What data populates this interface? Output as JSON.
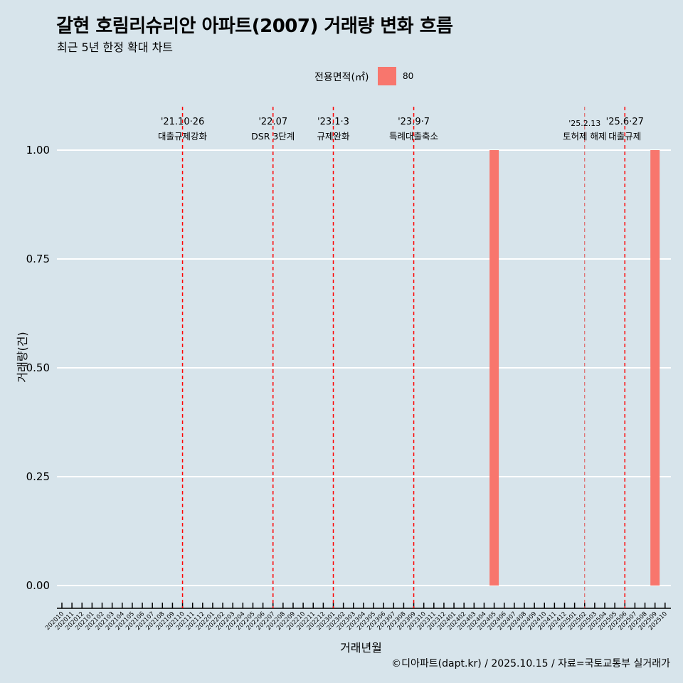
{
  "header": {
    "title": "갈현 호림리슈리안 아파트(2007) 거래량 변화 흐름",
    "subtitle": "최근 5년 한정 확대 차트"
  },
  "legend": {
    "title": "전용면적(㎡)",
    "label": "80",
    "color": "#f8766d"
  },
  "caption": "©디아파트(dapt.kr) / 2025.10.15 / 자료=국토교통부 실거래가",
  "chart_data": {
    "type": "bar",
    "title": "갈현 호림리슈리안 아파트(2007) 거래량 변화 흐름",
    "xlabel": "거래년월",
    "ylabel": "거래량(건)",
    "ylim": [
      0,
      1
    ],
    "yticks": [
      "0.00",
      "0.25",
      "0.50",
      "0.75",
      "1.00"
    ],
    "categories": [
      "202010",
      "202011",
      "202012",
      "202101",
      "202102",
      "202103",
      "202104",
      "202105",
      "202106",
      "202107",
      "202108",
      "202109",
      "202110",
      "202111",
      "202112",
      "202201",
      "202202",
      "202203",
      "202204",
      "202205",
      "202206",
      "202207",
      "202208",
      "202209",
      "202210",
      "202211",
      "202212",
      "202301",
      "202302",
      "202303",
      "202304",
      "202305",
      "202306",
      "202307",
      "202308",
      "202309",
      "202310",
      "202311",
      "202312",
      "202401",
      "202402",
      "202403",
      "202404",
      "202405",
      "202406",
      "202407",
      "202408",
      "202409",
      "202410",
      "202411",
      "202412",
      "202501",
      "202502",
      "202503",
      "202504",
      "202505",
      "202506",
      "202507",
      "202508",
      "202509",
      "202510"
    ],
    "series": [
      {
        "name": "80",
        "values": [
          {
            "x": "202405",
            "y": 1
          },
          {
            "x": "202509",
            "y": 1
          }
        ]
      }
    ],
    "annotations": [
      {
        "x": "202110",
        "date": "'21.10·26",
        "label": "대출규제강화",
        "style": "bold"
      },
      {
        "x": "202207",
        "date": "'22.07",
        "label": "DSR 3단계",
        "style": "bold"
      },
      {
        "x": "202301",
        "date": "'23.1·3",
        "label": "규제완화",
        "style": "bold"
      },
      {
        "x": "202309",
        "date": "'23.9·7",
        "label": "특례대출축소",
        "style": "bold"
      },
      {
        "x": "202502",
        "date": "'25.2.13",
        "label": "토허제 해제",
        "style": "thin"
      },
      {
        "x": "202506",
        "date": "'25.6·27",
        "label": "대출규제",
        "style": "bold"
      }
    ]
  }
}
